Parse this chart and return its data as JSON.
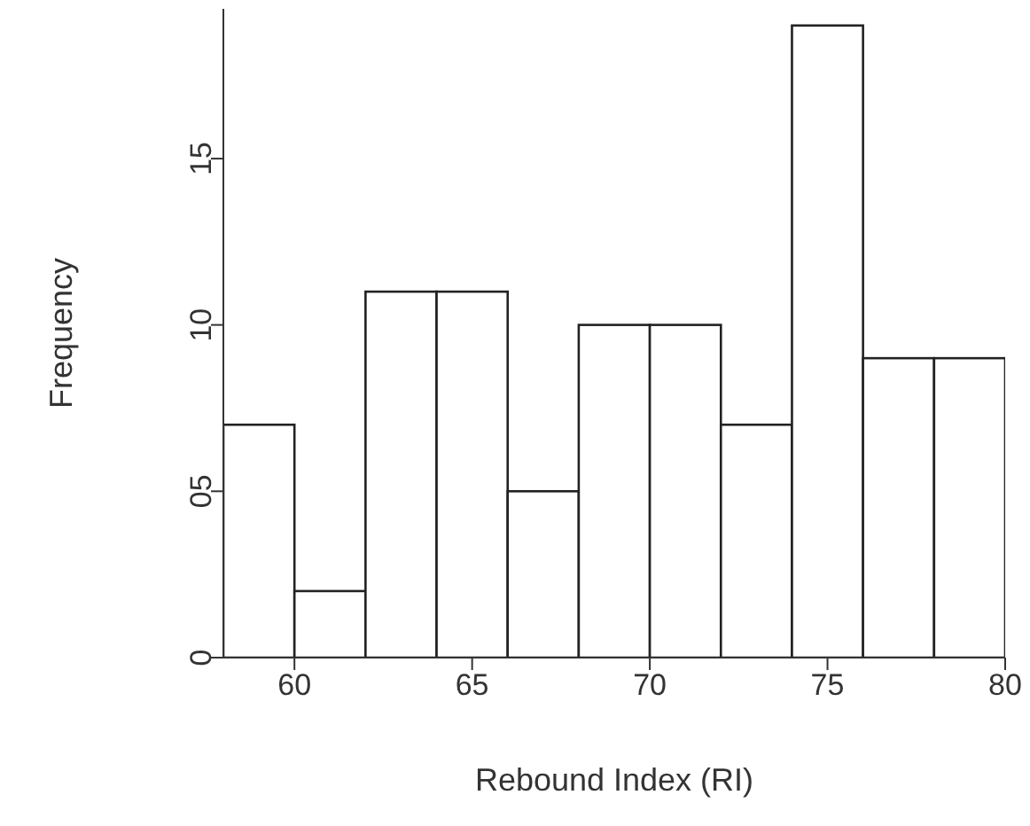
{
  "chart_data": {
    "type": "histogram",
    "xlabel": "Rebound Index (RI)",
    "ylabel": "Frequency",
    "bins": [
      58,
      60,
      62,
      64,
      66,
      68,
      70,
      72,
      74,
      76,
      78,
      80
    ],
    "values": [
      7,
      2,
      11,
      11,
      5,
      10,
      10,
      7,
      19,
      9,
      9
    ],
    "color": "#ffffff",
    "xlim": [
      58,
      80
    ],
    "xticks": [
      60,
      65,
      70,
      75,
      80
    ],
    "ylim": [
      0,
      19.5
    ],
    "yticks": [
      0,
      {
        "value": 5,
        "label": "05"
      },
      10,
      15
    ]
  }
}
